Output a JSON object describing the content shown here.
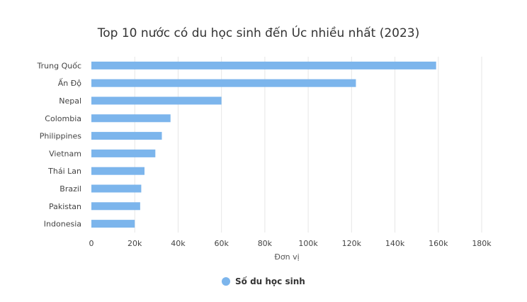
{
  "chart_data": {
    "type": "bar",
    "orientation": "horizontal",
    "title": "Top 10 nước có du học sinh đến Úc nhiều nhất (2023)",
    "xlabel": "Đơn vị",
    "ylabel": "",
    "categories": [
      "Trung Quốc",
      "Ấn Độ",
      "Nepal",
      "Colombia",
      "Philippines",
      "Vietnam",
      "Thái Lan",
      "Brazil",
      "Pakistan",
      "Indonesia"
    ],
    "series": [
      {
        "name": "Số du học sinh",
        "values": [
          159000,
          122000,
          60000,
          36500,
          32500,
          29500,
          24500,
          23000,
          22500,
          20000
        ],
        "color": "#7cb5ec"
      }
    ],
    "xlim": [
      0,
      180000
    ],
    "xticks": [
      0,
      20000,
      40000,
      60000,
      80000,
      100000,
      120000,
      140000,
      160000,
      180000
    ],
    "xtick_labels": [
      "0",
      "20k",
      "40k",
      "60k",
      "80k",
      "100k",
      "120k",
      "140k",
      "160k",
      "180k"
    ],
    "grid": true,
    "legend": "bottom-center"
  }
}
